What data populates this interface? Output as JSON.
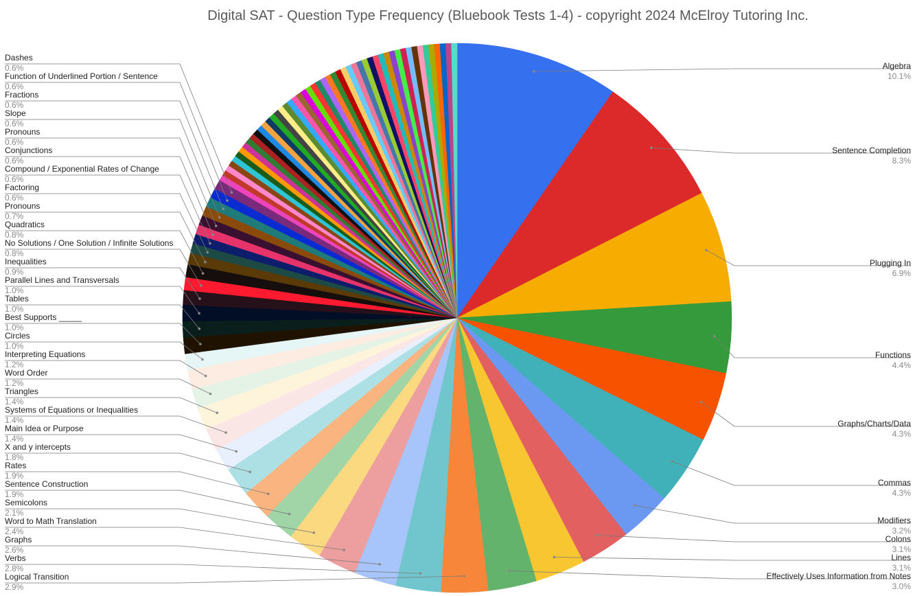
{
  "chart_data": {
    "type": "pie",
    "title": "Digital SAT - Question Type Frequency (Bluebook Tests 1-4) - copyright 2024 McElroy Tutoring Inc.",
    "slices": [
      {
        "label": "Algebra",
        "value": 10.1,
        "display": "10.1%",
        "color": "#3570ee"
      },
      {
        "label": "Sentence Completion",
        "value": 8.3,
        "display": "8.3%",
        "color": "#dc2a2a"
      },
      {
        "label": "Plugging In",
        "value": 6.9,
        "display": "6.9%",
        "color": "#f6ac00"
      },
      {
        "label": "Functions",
        "value": 4.4,
        "display": "4.4%",
        "color": "#359a3c"
      },
      {
        "label": "Graphs/Charts/Data",
        "value": 4.3,
        "display": "4.3%",
        "color": "#f65200"
      },
      {
        "label": "Commas",
        "value": 4.3,
        "display": "4.3%",
        "color": "#40b1b8"
      },
      {
        "label": "Modifiers",
        "value": 3.2,
        "display": "3.2%",
        "color": "#6b99f2"
      },
      {
        "label": "Colons",
        "value": 3.1,
        "display": "3.1%",
        "color": "#e26060"
      },
      {
        "label": "Lines",
        "value": 3.1,
        "display": "3.1%",
        "color": "#f8c630"
      },
      {
        "label": "Effectively Uses Information from Notes",
        "value": 3.0,
        "display": "3.0%",
        "color": "#63b36c"
      },
      {
        "label": "Logical Transition",
        "value": 2.9,
        "display": "2.9%",
        "color": "#f7853a"
      },
      {
        "label": "Verbs",
        "value": 2.8,
        "display": "2.8%",
        "color": "#70c6cc"
      },
      {
        "label": "Graphs",
        "value": 2.6,
        "display": "2.6%",
        "color": "#a7c4fb"
      },
      {
        "label": "Word to Math Translation",
        "value": 2.4,
        "display": "2.4%",
        "color": "#ed9f9f"
      },
      {
        "label": "Semicolons",
        "value": 2.1,
        "display": "2.1%",
        "color": "#fad981"
      },
      {
        "label": "Sentence Construction",
        "value": 1.9,
        "display": "1.9%",
        "color": "#a1d5a7"
      },
      {
        "label": "Rates",
        "value": 1.9,
        "display": "1.9%",
        "color": "#f9b47f"
      },
      {
        "label": "X and y intercepts",
        "value": 1.8,
        "display": "1.8%",
        "color": "#ade0e4"
      },
      {
        "label": "Main Idea or Purpose",
        "value": 1.4,
        "display": "1.4%",
        "color": "#e8effd"
      },
      {
        "label": "Systems of Equations or Inequalities",
        "value": 1.4,
        "display": "1.4%",
        "color": "#fbe6e6"
      },
      {
        "label": "Triangles",
        "value": 1.4,
        "display": "1.4%",
        "color": "#fef4dc"
      },
      {
        "label": "Word Order",
        "value": 1.2,
        "display": "1.2%",
        "color": "#e4f3e6"
      },
      {
        "label": "Interpreting Equations",
        "value": 1.2,
        "display": "1.2%",
        "color": "#fdece1"
      },
      {
        "label": "Circles",
        "value": 1.0,
        "display": "1.0%",
        "color": "#e6f5f6"
      },
      {
        "label": "Best Supports _____",
        "value": 1.0,
        "display": "1.0%",
        "color": "#1f1300"
      },
      {
        "label": "Tables",
        "value": 1.0,
        "display": "1.0%",
        "color": "#0a1f1c"
      },
      {
        "label": "Parallel Lines and Transversals",
        "value": 1.0,
        "display": "1.0%",
        "color": "#020d26"
      },
      {
        "label": "Inequalities",
        "value": 0.9,
        "display": "0.9%",
        "color": "#26101a"
      },
      {
        "label": "No Solutions / One Solution / Infinite Solutions",
        "value": 0.8,
        "display": "0.8%",
        "color": "#ff1a30"
      },
      {
        "label": "Quadratics",
        "value": 0.8,
        "display": "0.8%",
        "color": "#160d0d"
      },
      {
        "label": "Pronouns",
        "value": 0.7,
        "display": "0.7%",
        "color": "#5a3a06"
      },
      {
        "label": "Factoring",
        "value": 0.6,
        "display": "0.6%",
        "color": "#1d4a45"
      },
      {
        "label": "Compound / Exponential Rates of Change",
        "value": 0.6,
        "display": "0.6%",
        "color": "#0c1e6b"
      },
      {
        "label": "Conjunctions",
        "value": 0.6,
        "display": "0.6%",
        "color": "#e6336a"
      },
      {
        "label": "Pronouns",
        "value": 0.6,
        "display": "0.6%",
        "color": "#3a1030"
      },
      {
        "label": "Slope",
        "value": 0.6,
        "display": "0.6%",
        "color": "#8a4a0a"
      },
      {
        "label": "Fractions",
        "value": 0.6,
        "display": "0.6%",
        "color": "#1f7a7a"
      },
      {
        "label": "Function of Underlined Portion / Sentence",
        "value": 0.6,
        "display": "0.6%",
        "color": "#0a2bd1"
      },
      {
        "label": "Dashes",
        "value": 0.6,
        "display": "0.6%",
        "color": "#7a2a7a"
      }
    ],
    "unlabeled_slice_colors": [
      "#ee44bb",
      "#c0392b",
      "#ff88cc",
      "#8b4513",
      "#2ec4d6",
      "#1a5c1a",
      "#ff9900",
      "#cc3399",
      "#2e7d32",
      "#aa2222",
      "#111111",
      "#1e88e5",
      "#f4a340",
      "#0d3b66",
      "#22aa22",
      "#444444",
      "#ffee88",
      "#5c8a2e",
      "#33aaff",
      "#ff55aa",
      "#996633",
      "#dd00dd",
      "#66dd00",
      "#ff3333",
      "#228866",
      "#aa66ff",
      "#ff7722",
      "#338833",
      "#bb0000",
      "#ffcc66",
      "#66ccff",
      "#ee7799",
      "#4477aa",
      "#99cc33",
      "#111166",
      "#ff4466",
      "#22bbbb",
      "#cc8800",
      "#8844cc",
      "#44ee44",
      "#cc2255",
      "#77bbff",
      "#663300",
      "#ff99bb",
      "#33cc99",
      "#aaaa00",
      "#ff6600",
      "#0066cc",
      "#bb4488",
      "#55ddcc"
    ],
    "unlabeled_slice_value": 0.35
  }
}
